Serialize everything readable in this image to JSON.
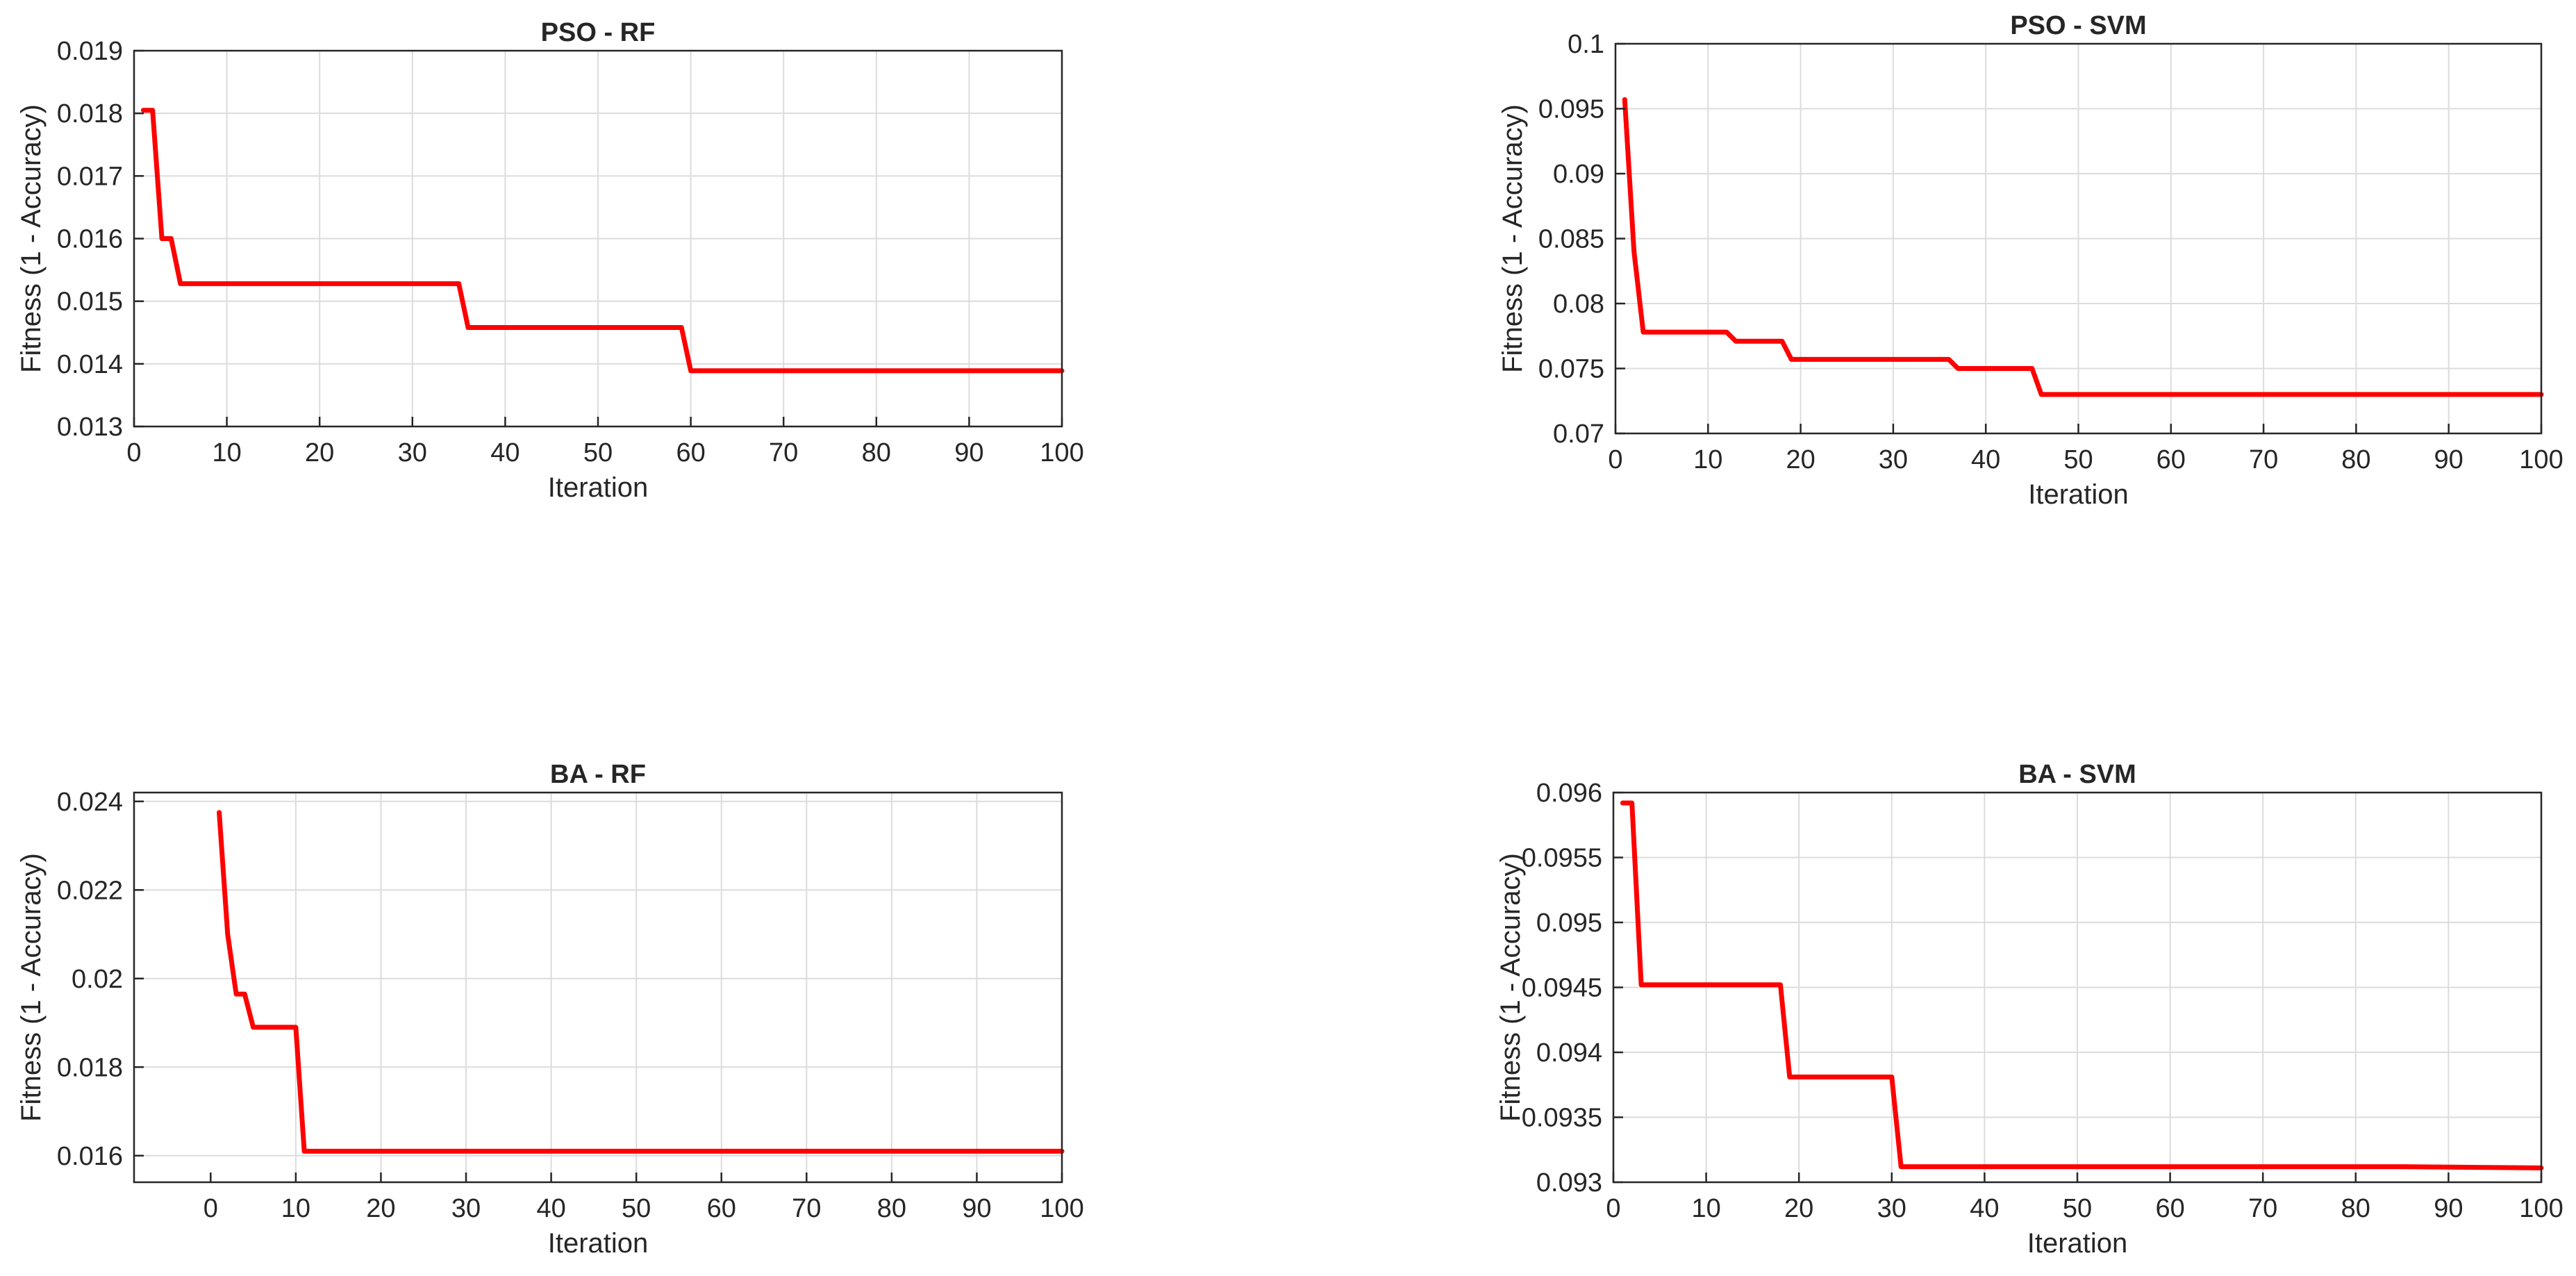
{
  "chart_data": [
    {
      "type": "line",
      "title": "PSO - RF",
      "xlabel": "Iteration",
      "ylabel": "Fitness (1 - Accuracy)",
      "xlim": [
        0,
        100
      ],
      "ylim": [
        0.013,
        0.019
      ],
      "xticks": [
        0,
        10,
        20,
        30,
        40,
        50,
        60,
        70,
        80,
        90,
        100
      ],
      "xtick_labels": [
        "0",
        "10",
        "20",
        "30",
        "40",
        "50",
        "60",
        "70",
        "80",
        "90",
        "100"
      ],
      "yticks": [
        0.013,
        0.014,
        0.015,
        0.016,
        0.017,
        0.018,
        0.019
      ],
      "ytick_labels": [
        "0.013",
        "0.014",
        "0.015",
        "0.016",
        "0.017",
        "0.018",
        "0.019"
      ],
      "grid": true,
      "series": [
        {
          "color": "#ff0000",
          "x": [
            1,
            2,
            3,
            4,
            5,
            35,
            36,
            59,
            60,
            100
          ],
          "y": [
            0.01805,
            0.01805,
            0.016,
            0.016,
            0.01528,
            0.01528,
            0.01458,
            0.01458,
            0.01389,
            0.01389
          ]
        }
      ]
    },
    {
      "type": "line",
      "title": "PSO - SVM",
      "xlabel": "Iteration",
      "ylabel": "Fitness (1 - Accuracy)",
      "xlim": [
        0,
        100
      ],
      "ylim": [
        0.07,
        0.1
      ],
      "xticks": [
        0,
        10,
        20,
        30,
        40,
        50,
        60,
        70,
        80,
        90,
        100
      ],
      "xtick_labels": [
        "0",
        "10",
        "20",
        "30",
        "40",
        "50",
        "60",
        "70",
        "80",
        "90",
        "100"
      ],
      "yticks": [
        0.07,
        0.075,
        0.08,
        0.085,
        0.09,
        0.095,
        0.1
      ],
      "ytick_labels": [
        "0.07",
        "0.075",
        "0.08",
        "0.085",
        "0.09",
        "0.095",
        "0.1"
      ],
      "grid": true,
      "series": [
        {
          "color": "#ff0000",
          "x": [
            1,
            2,
            3,
            12,
            13,
            18,
            19,
            36,
            37,
            45,
            46,
            100
          ],
          "y": [
            0.0957,
            0.084,
            0.0778,
            0.0778,
            0.0771,
            0.0771,
            0.0757,
            0.0757,
            0.075,
            0.075,
            0.073,
            0.073
          ]
        }
      ]
    },
    {
      "type": "line",
      "title": "BA - RF",
      "xlabel": "Iteration",
      "ylabel": "Fitness (1 - Accuracy)",
      "xlim": [
        -9,
        100
      ],
      "ylim": [
        0.0154,
        0.0242
      ],
      "xticks": [
        10,
        20,
        30,
        40,
        50,
        60,
        70,
        80,
        90,
        100
      ],
      "xtick_labels": [
        "10",
        "20",
        "30",
        "40",
        "50",
        "60",
        "70",
        "80",
        "90",
        "100"
      ],
      "minor_xticks": [
        0
      ],
      "minor_xtick_labels": [
        "0"
      ],
      "yticks": [
        0.016,
        0.018,
        0.02,
        0.022,
        0.024
      ],
      "ytick_labels": [
        "0.016",
        "0.018",
        "0.02",
        "0.022",
        "0.024"
      ],
      "grid": true,
      "series": [
        {
          "color": "#ff0000",
          "x": [
            1,
            2,
            3,
            4,
            5,
            10,
            11,
            100
          ],
          "y": [
            0.02375,
            0.021,
            0.01965,
            0.01965,
            0.0189,
            0.0189,
            0.0161,
            0.0161
          ]
        }
      ]
    },
    {
      "type": "line",
      "title": "BA - SVM",
      "xlabel": "Iteration",
      "ylabel": "Fitness (1 - Accuracy)",
      "xlim": [
        0,
        100
      ],
      "ylim": [
        0.093,
        0.096
      ],
      "xticks": [
        0,
        10,
        20,
        30,
        40,
        50,
        60,
        70,
        80,
        90,
        100
      ],
      "xtick_labels": [
        "0",
        "10",
        "20",
        "30",
        "40",
        "50",
        "60",
        "70",
        "80",
        "90",
        "100"
      ],
      "yticks": [
        0.093,
        0.0935,
        0.094,
        0.0945,
        0.095,
        0.0955,
        0.096
      ],
      "ytick_labels": [
        "0.093",
        "0.0935",
        "0.094",
        "0.0945",
        "0.095",
        "0.0955",
        "0.096"
      ],
      "grid": true,
      "series": [
        {
          "color": "#ff0000",
          "x": [
            1,
            2,
            3,
            18,
            19,
            30,
            31,
            85,
            100
          ],
          "y": [
            0.09592,
            0.09592,
            0.09452,
            0.09452,
            0.09381,
            0.09381,
            0.09312,
            0.09312,
            0.09311
          ]
        }
      ]
    }
  ]
}
